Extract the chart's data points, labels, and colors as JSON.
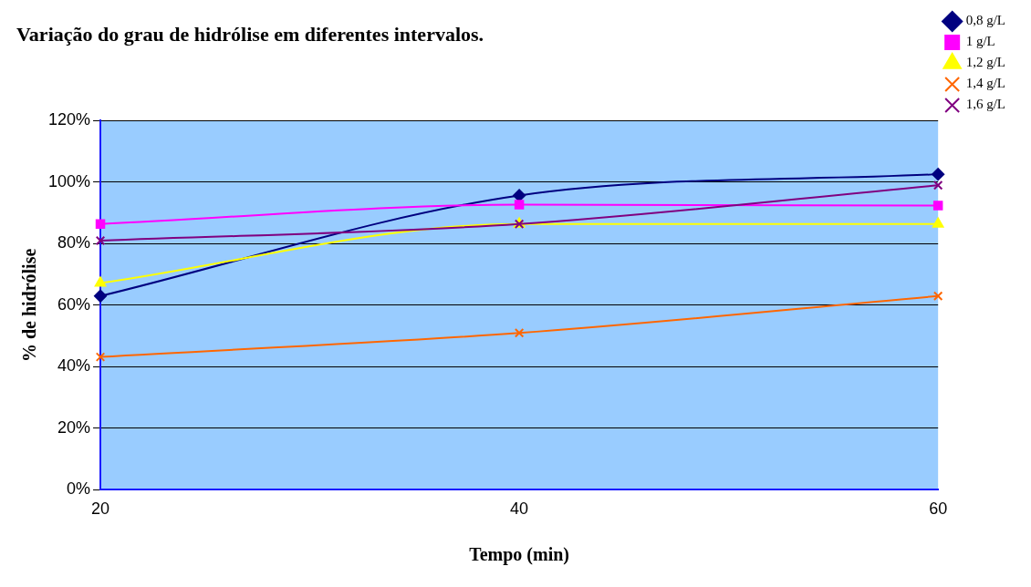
{
  "chart_data": {
    "type": "line",
    "title": "Variação do grau de hidrólise em diferentes intervalos.",
    "xlabel": "Tempo (min)",
    "ylabel": "% de hidrólise",
    "categories": [
      "20",
      "40",
      "60"
    ],
    "series": [
      {
        "name": "0,8 g/L",
        "color": "#000080",
        "marker": "diamond",
        "values": [
          63,
          95.7,
          102.6
        ]
      },
      {
        "name": "1 g/L",
        "color": "#ff00ff",
        "marker": "square",
        "values": [
          86.4,
          92.7,
          92.4
        ]
      },
      {
        "name": "1,2 g/L",
        "color": "#ffff00",
        "marker": "triangle",
        "values": [
          67.2,
          86.4,
          86.4
        ]
      },
      {
        "name": "1,4 g/L",
        "color": "#ff6600",
        "marker": "cross",
        "values": [
          43.2,
          51,
          63
        ]
      },
      {
        "name": "1,6 g/L",
        "color": "#800080",
        "marker": "cross",
        "values": [
          81,
          86.4,
          99
        ]
      }
    ],
    "ylim": [
      0,
      120
    ],
    "yticks": [
      {
        "value": 0,
        "label": "0%"
      },
      {
        "value": 20,
        "label": "20%"
      },
      {
        "value": 40,
        "label": "40%"
      },
      {
        "value": 60,
        "label": "60%"
      },
      {
        "value": 80,
        "label": "80%"
      },
      {
        "value": 100,
        "label": "100%"
      },
      {
        "value": 120,
        "label": "120%"
      }
    ],
    "grid": "y",
    "legend": "top right",
    "line_style": "solid"
  }
}
